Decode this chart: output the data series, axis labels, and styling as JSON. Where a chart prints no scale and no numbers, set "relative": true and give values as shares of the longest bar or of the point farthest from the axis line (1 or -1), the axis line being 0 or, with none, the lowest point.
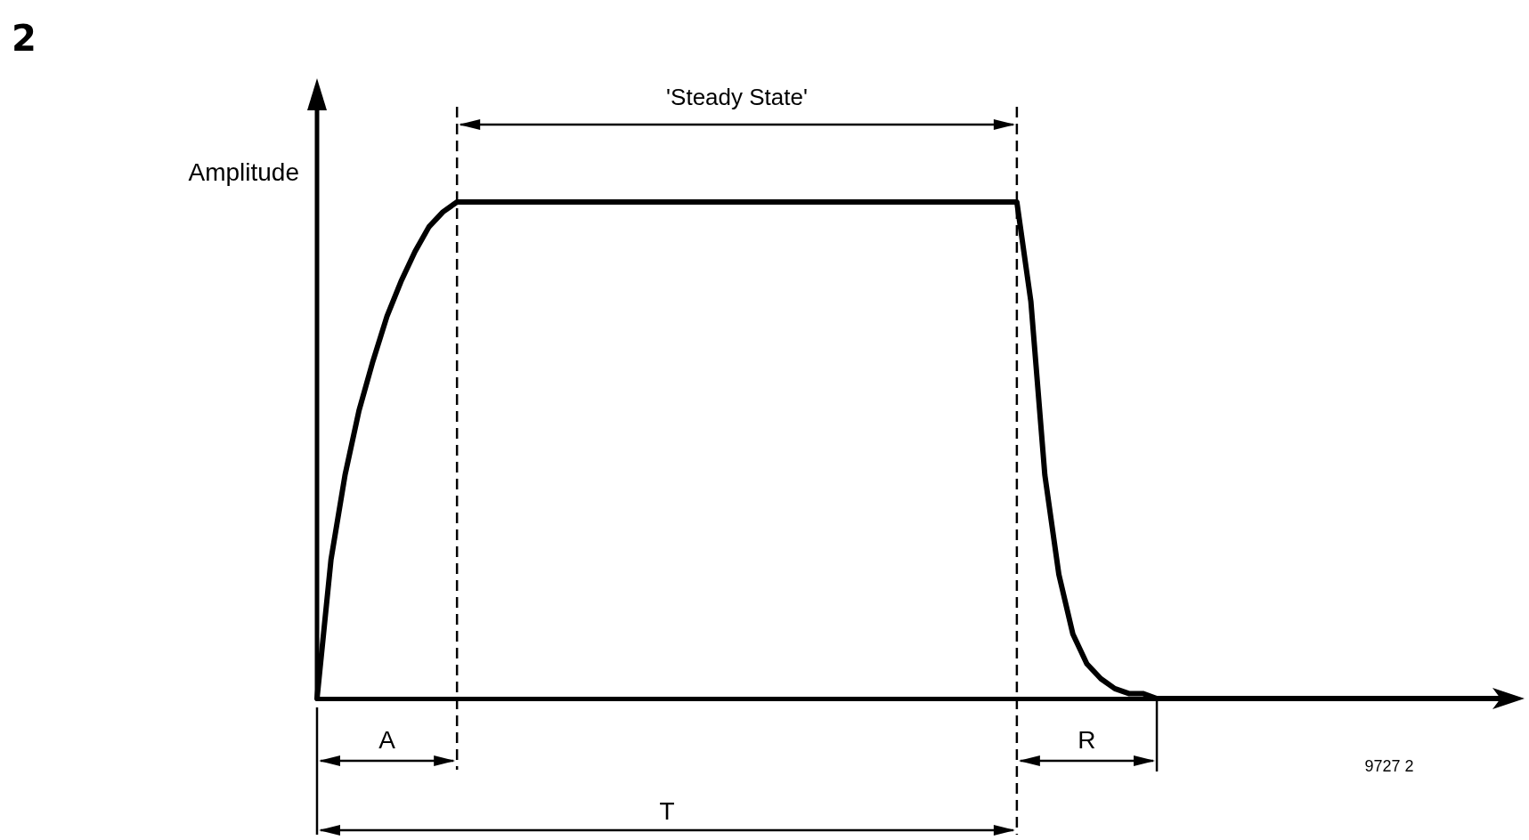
{
  "chart_data": {
    "type": "line",
    "title": "2",
    "ylabel": "Amplitude",
    "relative": true,
    "marker": "none",
    "line_style": "solid",
    "annotations": [
      "'Steady State'",
      "A",
      "R",
      "T",
      "9727 2"
    ],
    "categories": [
      null,
      null,
      null,
      null,
      null,
      null,
      null,
      null,
      null,
      null,
      null,
      null,
      null,
      null,
      null,
      null,
      null,
      null,
      null,
      null,
      null,
      null,
      null,
      null,
      null,
      null,
      null,
      null,
      null,
      null,
      null,
      null,
      null,
      null,
      null,
      null,
      null,
      null,
      null,
      null,
      null,
      null,
      null,
      null,
      null,
      null,
      null,
      null,
      null,
      null,
      null,
      null,
      null,
      null,
      null,
      null,
      null,
      null,
      null,
      null,
      null,
      null,
      null,
      null,
      null,
      null,
      null,
      null,
      null,
      null,
      null,
      null,
      null,
      null,
      null,
      null,
      null,
      null,
      null,
      null,
      null,
      null,
      null,
      null,
      null,
      null
    ],
    "series": [
      {
        "color": "#000000",
        "values": [
          0,
          0.28,
          0.45,
          0.58,
          0.68,
          0.77,
          0.84,
          0.9,
          0.95,
          0.98,
          1,
          1,
          1,
          1,
          1,
          1,
          1,
          1,
          1,
          1,
          1,
          1,
          1,
          1,
          1,
          1,
          1,
          1,
          1,
          1,
          1,
          1,
          1,
          1,
          1,
          1,
          1,
          1,
          1,
          1,
          1,
          1,
          1,
          1,
          1,
          1,
          1,
          1,
          1,
          1,
          1,
          0.8,
          0.45,
          0.25,
          0.13,
          0.07,
          0.04,
          0.02,
          0.01,
          0.01,
          0,
          0,
          0,
          0,
          0,
          0,
          0,
          0,
          0,
          0,
          0,
          0,
          0,
          0,
          0,
          0,
          0,
          0,
          0,
          0,
          0,
          0,
          0,
          0,
          0,
          0
        ]
      }
    ]
  }
}
